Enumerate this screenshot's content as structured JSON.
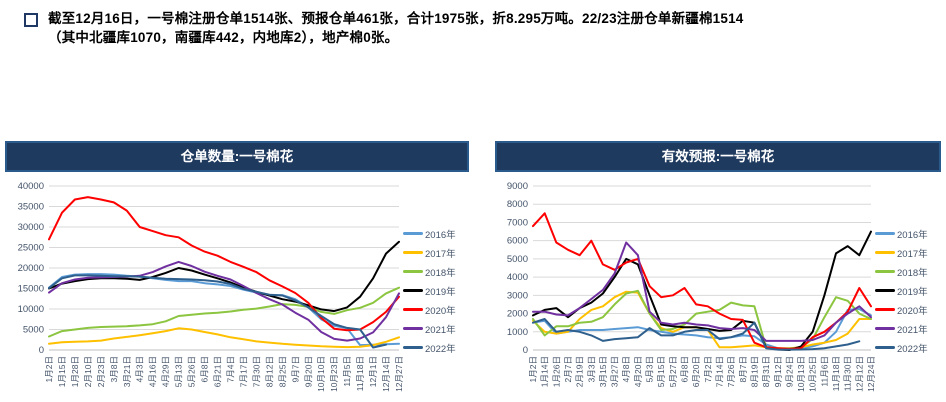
{
  "header": {
    "lines": [
      "截至12月16日，一号棉注册仓单1514张、预报仓单461张，合计1975张，折8.295万吨。22/23注册仓单新疆棉1514",
      "（其中北疆库1070，南疆库442，内地库2），地产棉0张。"
    ]
  },
  "style": {
    "title_bg": "#1F3A5F",
    "title_border": "#2B5A8C",
    "axis_text": "#44546A",
    "grid_color": "#D9D9D9",
    "zero_line": "#BFBFBF"
  },
  "chart_data": [
    {
      "type": "line",
      "title": "仓单数量:一号棉花",
      "ylim": [
        0,
        40000
      ],
      "ystep": 5000,
      "grid": true,
      "legend_position": "right",
      "categories": [
        "1月2日",
        "1月15日",
        "1月28日",
        "2月10日",
        "2月23日",
        "3月8日",
        "3月21日",
        "4月3日",
        "4月16日",
        "4月29日",
        "5月13日",
        "5月26日",
        "6月8日",
        "6月21日",
        "7月4日",
        "7月17日",
        "7月30日",
        "8月12日",
        "8月25日",
        "9月7日",
        "9月20日",
        "10月10日",
        "10月23日",
        "11月5日",
        "11月18日",
        "12月1日",
        "12月14日",
        "12月27日"
      ],
      "series": [
        {
          "name": "2016年",
          "color": "#5B9BD5",
          "values": [
            15200,
            17800,
            18400,
            18500,
            18500,
            18400,
            18100,
            17900,
            17500,
            17100,
            16800,
            16800,
            16300,
            16000,
            15600,
            14700,
            14000,
            13400,
            13400,
            12400,
            10400,
            7500,
            5900,
            5300,
            1200,
            1300,
            1400,
            1500
          ]
        },
        {
          "name": "2017年",
          "color": "#FFC000",
          "values": [
            1500,
            1900,
            2000,
            2100,
            2300,
            2800,
            3200,
            3600,
            4100,
            4600,
            5300,
            5000,
            4400,
            3800,
            3100,
            2600,
            2100,
            1800,
            1500,
            1300,
            1100,
            900,
            800,
            700,
            800,
            1200,
            2000,
            3100
          ]
        },
        {
          "name": "2018年",
          "color": "#8CC540",
          "values": [
            3300,
            4600,
            5000,
            5400,
            5600,
            5700,
            5800,
            6000,
            6300,
            7000,
            8300,
            8600,
            8900,
            9100,
            9400,
            9800,
            10100,
            10600,
            11200,
            11000,
            10500,
            9300,
            8800,
            9700,
            10300,
            11500,
            13800,
            15200
          ]
        },
        {
          "name": "2019年",
          "color": "#000000",
          "values": [
            15000,
            16200,
            16800,
            17300,
            17500,
            17500,
            17400,
            17100,
            17800,
            18800,
            20000,
            19400,
            18400,
            17500,
            16500,
            15200,
            14200,
            13300,
            12400,
            11800,
            10900,
            9900,
            9500,
            10400,
            13000,
            17500,
            23500,
            26400
          ]
        },
        {
          "name": "2020年",
          "color": "#FF0000",
          "values": [
            27000,
            33500,
            36700,
            37300,
            36700,
            36000,
            34000,
            30000,
            29000,
            28000,
            27500,
            25500,
            24000,
            23000,
            21500,
            20300,
            19000,
            17000,
            15500,
            13900,
            11500,
            7800,
            5200,
            4800,
            5000,
            6800,
            9300,
            13000
          ]
        },
        {
          "name": "2021年",
          "color": "#7030A0",
          "values": [
            14000,
            16300,
            17200,
            17600,
            17700,
            17800,
            17900,
            18100,
            19000,
            20400,
            21500,
            20500,
            19100,
            18100,
            17200,
            15600,
            13900,
            12400,
            11100,
            9100,
            7400,
            4400,
            2700,
            2300,
            2800,
            4300,
            8000,
            13800
          ]
        },
        {
          "name": "2022年",
          "color": "#2E5F8D",
          "values": [
            15100,
            17500,
            18200,
            18200,
            18100,
            18000,
            18000,
            17900,
            17600,
            17400,
            17300,
            17200,
            17000,
            16700,
            16100,
            14900,
            14200,
            13500,
            13300,
            12100,
            10400,
            8300,
            6300,
            5400,
            5000,
            600,
            1300,
            null
          ]
        }
      ]
    },
    {
      "type": "line",
      "title": "有效预报:一号棉花",
      "ylim": [
        0,
        9000
      ],
      "ystep": 1000,
      "grid": true,
      "legend_position": "right",
      "categories": [
        "1月2日",
        "1月14日",
        "1月26日",
        "2月7日",
        "2月19日",
        "3月3日",
        "3月15日",
        "3月27日",
        "4月8日",
        "4月20日",
        "5月3日",
        "5月15日",
        "5月27日",
        "6月8日",
        "6月20日",
        "7月2日",
        "7月14日",
        "7月26日",
        "8月7日",
        "8月19日",
        "8月31日",
        "9月12日",
        "9月24日",
        "10月13日",
        "10月25日",
        "11月6日",
        "11月18日",
        "11月30日",
        "12月12日",
        "12月24日"
      ],
      "series": [
        {
          "name": "2016年",
          "color": "#5B9BD5",
          "values": [
            1500,
            1600,
            900,
            1000,
            1100,
            1100,
            1100,
            1150,
            1200,
            1250,
            1100,
            1000,
            900,
            850,
            800,
            700,
            650,
            700,
            800,
            750,
            300,
            100,
            80,
            100,
            200,
            400,
            1000,
            2200,
            2250,
            1900
          ]
        },
        {
          "name": "2017年",
          "color": "#FFC000",
          "values": [
            1600,
            1000,
            900,
            1000,
            1700,
            2200,
            2400,
            2900,
            3200,
            3150,
            2000,
            1200,
            1000,
            1250,
            1250,
            1100,
            150,
            150,
            200,
            250,
            150,
            100,
            100,
            150,
            300,
            400,
            550,
            900,
            1700,
            1700
          ]
        },
        {
          "name": "2018年",
          "color": "#8CC540",
          "values": [
            1700,
            800,
            1300,
            1300,
            1500,
            1550,
            1800,
            2500,
            3100,
            3250,
            2000,
            1100,
            1150,
            1400,
            2000,
            2100,
            2200,
            2600,
            2450,
            2400,
            150,
            80,
            80,
            150,
            600,
            1800,
            2900,
            2700,
            2000,
            1700
          ]
        },
        {
          "name": "2019年",
          "color": "#000000",
          "values": [
            1900,
            2200,
            2300,
            1800,
            2300,
            2600,
            3100,
            4000,
            5000,
            4700,
            3000,
            1400,
            1300,
            1250,
            1250,
            1150,
            1050,
            1100,
            1600,
            1500,
            150,
            30,
            0,
            200,
            1000,
            3000,
            5300,
            5700,
            5200,
            6500
          ]
        },
        {
          "name": "2020年",
          "color": "#FF0000",
          "values": [
            6800,
            7500,
            5900,
            5500,
            5200,
            6000,
            4700,
            4400,
            4800,
            5000,
            3500,
            2900,
            3000,
            3400,
            2500,
            2400,
            2000,
            1700,
            1650,
            400,
            150,
            100,
            60,
            100,
            700,
            1000,
            1500,
            2100,
            3400,
            2400
          ]
        },
        {
          "name": "2021年",
          "color": "#7030A0",
          "values": [
            2100,
            2100,
            1950,
            1900,
            2300,
            2800,
            3300,
            4200,
            5900,
            5200,
            2100,
            1500,
            1400,
            1500,
            1400,
            1350,
            1200,
            1150,
            1200,
            1100,
            500,
            500,
            500,
            500,
            550,
            800,
            1500,
            2000,
            2400,
            1800
          ]
        },
        {
          "name": "2022年",
          "color": "#2E5F8D",
          "values": [
            1500,
            1700,
            1000,
            1100,
            1000,
            800,
            500,
            600,
            650,
            700,
            1200,
            800,
            800,
            1000,
            1100,
            1100,
            600,
            700,
            900,
            1500,
            100,
            20,
            20,
            30,
            50,
            100,
            200,
            300,
            480,
            null
          ]
        }
      ]
    }
  ]
}
